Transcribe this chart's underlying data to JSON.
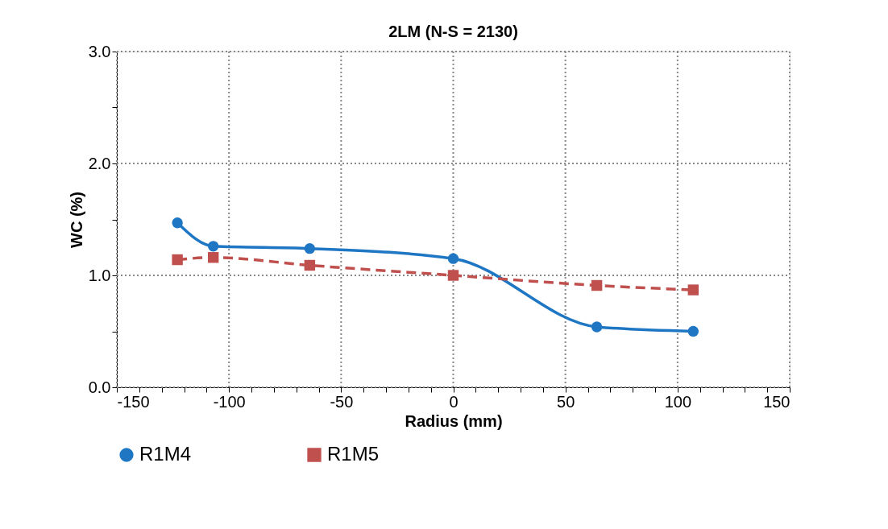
{
  "chart_data": {
    "type": "line",
    "title": "2LM (N-S = 2130)",
    "xlabel": "Radius (mm)",
    "ylabel": "WC  (%)",
    "series": [
      {
        "name": "R1M4",
        "color": "#1f77c4",
        "marker": "circle",
        "line_style": "solid",
        "x": [
          -123,
          -107,
          -64,
          0,
          64,
          107
        ],
        "values": [
          1.47,
          1.26,
          1.24,
          1.15,
          0.54,
          0.5
        ]
      },
      {
        "name": "R1M5",
        "color": "#c0504d",
        "marker": "square",
        "line_style": "dashed",
        "x": [
          -123,
          -107,
          -64,
          0,
          64,
          107
        ],
        "values": [
          1.14,
          1.16,
          1.09,
          1.0,
          0.91,
          0.87
        ]
      }
    ],
    "xlim": [
      -150,
      150
    ],
    "xticks": [
      -150,
      {
        "value": -140,
        "label": null
      },
      {
        "value": -130,
        "label": null
      },
      {
        "value": -120,
        "label": null
      },
      {
        "value": -110,
        "label": null
      },
      -100,
      {
        "value": -90,
        "label": null
      },
      {
        "value": -80,
        "label": null
      },
      {
        "value": -70,
        "label": null
      },
      {
        "value": -60,
        "label": null
      },
      -50,
      {
        "value": -40,
        "label": null
      },
      {
        "value": -30,
        "label": null
      },
      {
        "value": -20,
        "label": null
      },
      {
        "value": -10,
        "label": null
      },
      0,
      {
        "value": 10,
        "label": null
      },
      {
        "value": 20,
        "label": null
      },
      {
        "value": 30,
        "label": null
      },
      {
        "value": 40,
        "label": null
      },
      50,
      {
        "value": 60,
        "label": null
      },
      {
        "value": 70,
        "label": null
      },
      {
        "value": 80,
        "label": null
      },
      {
        "value": 90,
        "label": null
      },
      100,
      {
        "value": 110,
        "label": null
      },
      {
        "value": 120,
        "label": null
      },
      {
        "value": 130,
        "label": null
      },
      {
        "value": 140,
        "label": null
      },
      150
    ],
    "ylim": [
      0,
      3
    ],
    "yticks": [
      {
        "value": 0,
        "label": "0.0"
      },
      {
        "value": 0.5,
        "label": null
      },
      {
        "value": 1,
        "label": "1.0"
      },
      {
        "value": 1.5,
        "label": null
      },
      {
        "value": 2,
        "label": "2.0"
      },
      {
        "value": 2.5,
        "label": null
      },
      {
        "value": 3,
        "label": "3.0"
      }
    ],
    "grid": true,
    "legend": "bottom"
  }
}
